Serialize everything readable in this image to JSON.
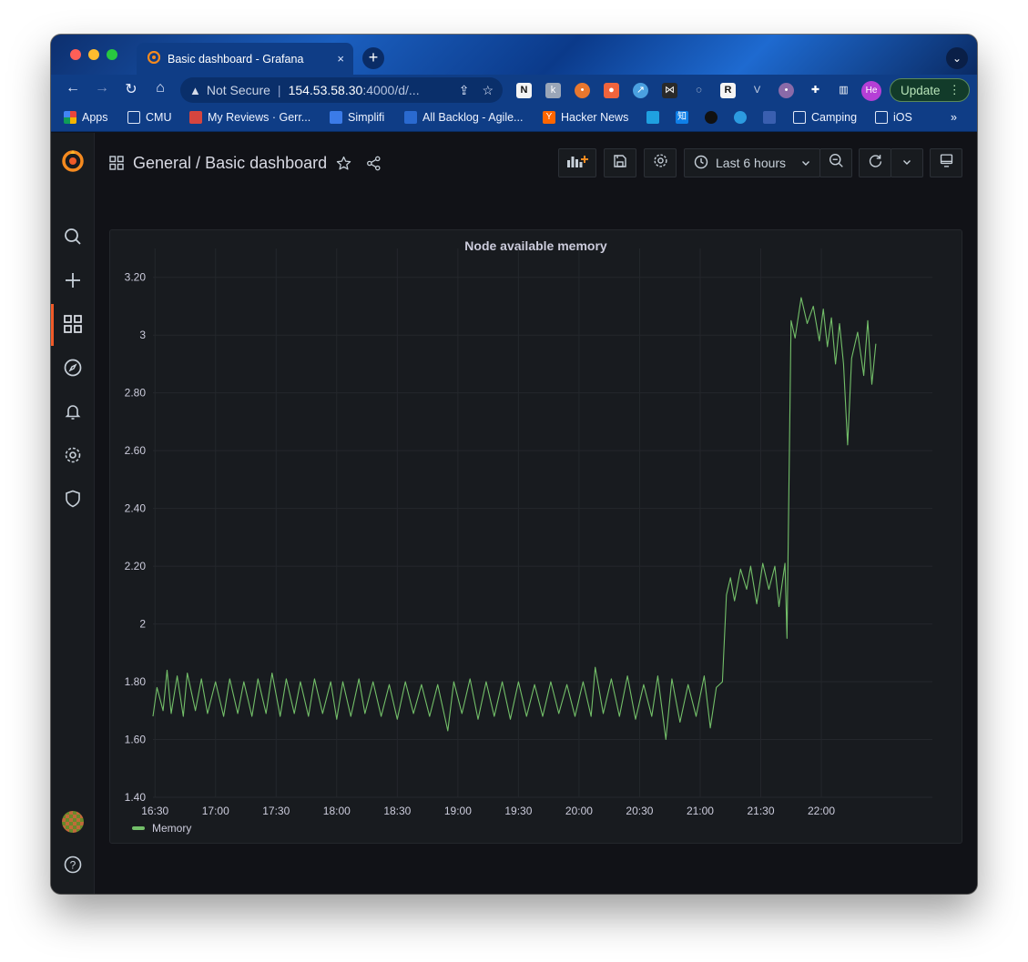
{
  "browser": {
    "tab_title": "Basic dashboard - Grafana",
    "tab_close": "×",
    "new_tab": "+",
    "tab_menu": "⌄",
    "address": {
      "security": "Not Secure",
      "host": "154.53.58.30",
      "path": ":4000/d/..."
    },
    "profile_initials": "He",
    "update_label": "Update",
    "bookmarks": [
      "Apps",
      "CMU",
      "My Reviews · Gerr...",
      "Simplifi",
      "All Backlog - Agile...",
      "Hacker News",
      "Camping",
      "iOS"
    ],
    "bookmarks_overflow": "»"
  },
  "grafana": {
    "breadcrumb_folder": "General",
    "breadcrumb_sep": " / ",
    "dashboard_title": "Basic dashboard",
    "time_range": "Last 6 hours",
    "panel": {
      "title": "Node available memory",
      "legend": "Memory"
    },
    "colors": {
      "series": "#73bf69",
      "accent": "#f05a28"
    }
  },
  "chart_data": {
    "type": "line",
    "title": "Node available memory",
    "xlabel": "",
    "ylabel": "",
    "x_ticks": [
      "16:30",
      "17:00",
      "17:30",
      "18:00",
      "18:30",
      "19:00",
      "19:30",
      "20:00",
      "20:30",
      "21:00",
      "21:30",
      "22:00"
    ],
    "y_ticks": [
      "1.40",
      "1.60",
      "1.80",
      "2",
      "2.20",
      "2.40",
      "2.60",
      "2.80",
      "3",
      "3.20"
    ],
    "ylim": [
      1.4,
      3.3
    ],
    "x_range": [
      "16:29",
      "22:55"
    ],
    "grid": true,
    "legend_position": "bottom-left",
    "series": [
      {
        "name": "Memory",
        "color": "#73bf69",
        "points": [
          [
            "16:29",
            1.68
          ],
          [
            "16:31",
            1.78
          ],
          [
            "16:34",
            1.7
          ],
          [
            "16:36",
            1.84
          ],
          [
            "16:38",
            1.69
          ],
          [
            "16:41",
            1.82
          ],
          [
            "16:44",
            1.68
          ],
          [
            "16:46",
            1.83
          ],
          [
            "16:50",
            1.7
          ],
          [
            "16:53",
            1.81
          ],
          [
            "16:56",
            1.69
          ],
          [
            "17:00",
            1.8
          ],
          [
            "17:04",
            1.68
          ],
          [
            "17:07",
            1.81
          ],
          [
            "17:11",
            1.69
          ],
          [
            "17:14",
            1.8
          ],
          [
            "17:18",
            1.68
          ],
          [
            "17:21",
            1.81
          ],
          [
            "17:25",
            1.69
          ],
          [
            "17:28",
            1.83
          ],
          [
            "17:32",
            1.68
          ],
          [
            "17:35",
            1.81
          ],
          [
            "17:39",
            1.69
          ],
          [
            "17:42",
            1.8
          ],
          [
            "17:46",
            1.68
          ],
          [
            "17:49",
            1.81
          ],
          [
            "17:53",
            1.69
          ],
          [
            "17:57",
            1.8
          ],
          [
            "18:00",
            1.67
          ],
          [
            "18:03",
            1.8
          ],
          [
            "18:07",
            1.68
          ],
          [
            "18:11",
            1.81
          ],
          [
            "18:14",
            1.69
          ],
          [
            "18:18",
            1.8
          ],
          [
            "18:22",
            1.68
          ],
          [
            "18:26",
            1.79
          ],
          [
            "18:30",
            1.67
          ],
          [
            "18:34",
            1.8
          ],
          [
            "18:38",
            1.69
          ],
          [
            "18:42",
            1.79
          ],
          [
            "18:46",
            1.68
          ],
          [
            "18:50",
            1.79
          ],
          [
            "18:55",
            1.63
          ],
          [
            "18:58",
            1.8
          ],
          [
            "19:02",
            1.69
          ],
          [
            "19:06",
            1.81
          ],
          [
            "19:10",
            1.67
          ],
          [
            "19:14",
            1.8
          ],
          [
            "19:18",
            1.68
          ],
          [
            "19:22",
            1.8
          ],
          [
            "19:26",
            1.67
          ],
          [
            "19:30",
            1.8
          ],
          [
            "19:34",
            1.68
          ],
          [
            "19:38",
            1.79
          ],
          [
            "19:42",
            1.68
          ],
          [
            "19:46",
            1.8
          ],
          [
            "19:50",
            1.69
          ],
          [
            "19:54",
            1.79
          ],
          [
            "19:58",
            1.68
          ],
          [
            "20:02",
            1.8
          ],
          [
            "20:06",
            1.68
          ],
          [
            "20:08",
            1.85
          ],
          [
            "20:12",
            1.69
          ],
          [
            "20:16",
            1.81
          ],
          [
            "20:20",
            1.68
          ],
          [
            "20:24",
            1.82
          ],
          [
            "20:28",
            1.67
          ],
          [
            "20:32",
            1.79
          ],
          [
            "20:36",
            1.68
          ],
          [
            "20:39",
            1.82
          ],
          [
            "20:43",
            1.6
          ],
          [
            "20:46",
            1.81
          ],
          [
            "20:50",
            1.66
          ],
          [
            "20:54",
            1.79
          ],
          [
            "20:58",
            1.68
          ],
          [
            "21:02",
            1.82
          ],
          [
            "21:05",
            1.64
          ],
          [
            "21:08",
            1.78
          ],
          [
            "21:11",
            1.8
          ],
          [
            "21:13",
            2.1
          ],
          [
            "21:15",
            2.16
          ],
          [
            "21:17",
            2.08
          ],
          [
            "21:20",
            2.19
          ],
          [
            "21:23",
            2.12
          ],
          [
            "21:25",
            2.2
          ],
          [
            "21:28",
            2.07
          ],
          [
            "21:31",
            2.21
          ],
          [
            "21:34",
            2.12
          ],
          [
            "21:37",
            2.2
          ],
          [
            "21:39",
            2.06
          ],
          [
            "21:42",
            2.21
          ],
          [
            "21:43",
            1.95
          ],
          [
            "21:45",
            3.05
          ],
          [
            "21:47",
            2.99
          ],
          [
            "21:50",
            3.13
          ],
          [
            "21:53",
            3.04
          ],
          [
            "21:56",
            3.1
          ],
          [
            "21:59",
            2.98
          ],
          [
            "22:01",
            3.09
          ],
          [
            "22:03",
            2.96
          ],
          [
            "22:05",
            3.06
          ],
          [
            "22:07",
            2.9
          ],
          [
            "22:09",
            3.04
          ],
          [
            "22:11",
            2.9
          ],
          [
            "22:13",
            2.62
          ],
          [
            "22:15",
            2.92
          ],
          [
            "22:18",
            3.01
          ],
          [
            "22:21",
            2.86
          ],
          [
            "22:23",
            3.05
          ],
          [
            "22:25",
            2.83
          ],
          [
            "22:27",
            2.97
          ]
        ]
      }
    ]
  }
}
